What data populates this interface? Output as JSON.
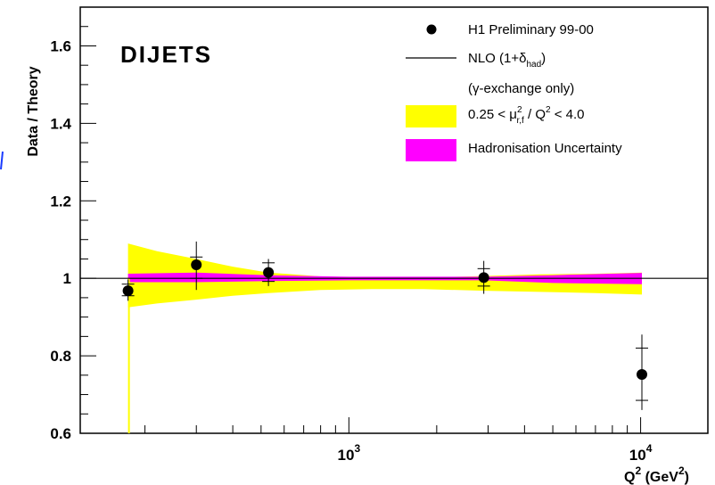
{
  "chart_data": {
    "type": "scatter",
    "title": "DIJETS",
    "xlabel": "Q² (GeV²)",
    "ylabel": "Data / Theory",
    "xscale": "log",
    "xlim": [
      120,
      17000
    ],
    "ylim": [
      0.6,
      1.7
    ],
    "grid": false,
    "legend_placement": "top-right",
    "x_tick_labels": [
      "10³",
      "10⁴"
    ],
    "y_tick_labels": [
      "0.6",
      "0.8",
      "1",
      "1.2",
      "1.4",
      "1.6"
    ],
    "series": [
      {
        "name": "H1 Preliminary 99-00",
        "style": "markers-with-error-bars",
        "color": "#000000",
        "points": [
          {
            "x": 175,
            "y": 0.968,
            "stat_low": 0.955,
            "stat_high": 0.985,
            "tot_low": 0.942,
            "tot_high": 0.997
          },
          {
            "x": 300,
            "y": 1.035,
            "stat_low": 1.0,
            "stat_high": 1.055,
            "tot_low": 0.97,
            "tot_high": 1.095
          },
          {
            "x": 530,
            "y": 1.015,
            "stat_low": 0.992,
            "stat_high": 1.04,
            "tot_low": 0.98,
            "tot_high": 1.05
          },
          {
            "x": 2900,
            "y": 1.002,
            "stat_low": 0.98,
            "stat_high": 1.025,
            "tot_low": 0.96,
            "tot_high": 1.045
          },
          {
            "x": 10100,
            "y": 0.752,
            "stat_low": 0.685,
            "stat_high": 0.82,
            "tot_low": 0.66,
            "tot_high": 0.855
          }
        ]
      },
      {
        "name": "NLO (1+δhad)",
        "style": "line",
        "color": "#000000",
        "x": [
          120,
          17000
        ],
        "y": [
          1.0,
          1.0
        ]
      },
      {
        "name": "0.25 < μ²r,f / Q² < 4.0",
        "style": "band",
        "color": "#ffff00",
        "x": [
          175,
          220,
          300,
          400,
          530,
          800,
          1200,
          1800,
          2900,
          4500,
          7000,
          10100
        ],
        "low": [
          0.925,
          0.935,
          0.945,
          0.955,
          0.962,
          0.97,
          0.972,
          0.972,
          0.968,
          0.965,
          0.962,
          0.958
        ],
        "high": [
          1.09,
          1.07,
          1.05,
          1.03,
          1.015,
          1.005,
          1.002,
          1.002,
          1.006,
          1.01,
          1.012,
          1.015
        ]
      },
      {
        "name": "Hadronisation Uncertainty",
        "style": "band",
        "color": "#ff00ff",
        "x": [
          175,
          300,
          530,
          1000,
          2900,
          5000,
          10100
        ],
        "low": [
          0.99,
          0.99,
          0.993,
          0.995,
          0.995,
          0.988,
          0.985
        ],
        "high": [
          1.012,
          1.015,
          1.008,
          1.004,
          1.004,
          1.008,
          1.014
        ]
      }
    ],
    "legend": [
      {
        "symbol": "marker",
        "label": "H1 Preliminary 99-00"
      },
      {
        "symbol": "line",
        "label": "NLO (1+δhad)"
      },
      {
        "symbol": "none",
        "label": "(γ-exchange only)"
      },
      {
        "symbol": "band-yellow",
        "label": "0.25 < μ²r,f / Q² < 4.0"
      },
      {
        "symbol": "band-magenta",
        "label": "Hadronisation Uncertainty"
      }
    ]
  }
}
